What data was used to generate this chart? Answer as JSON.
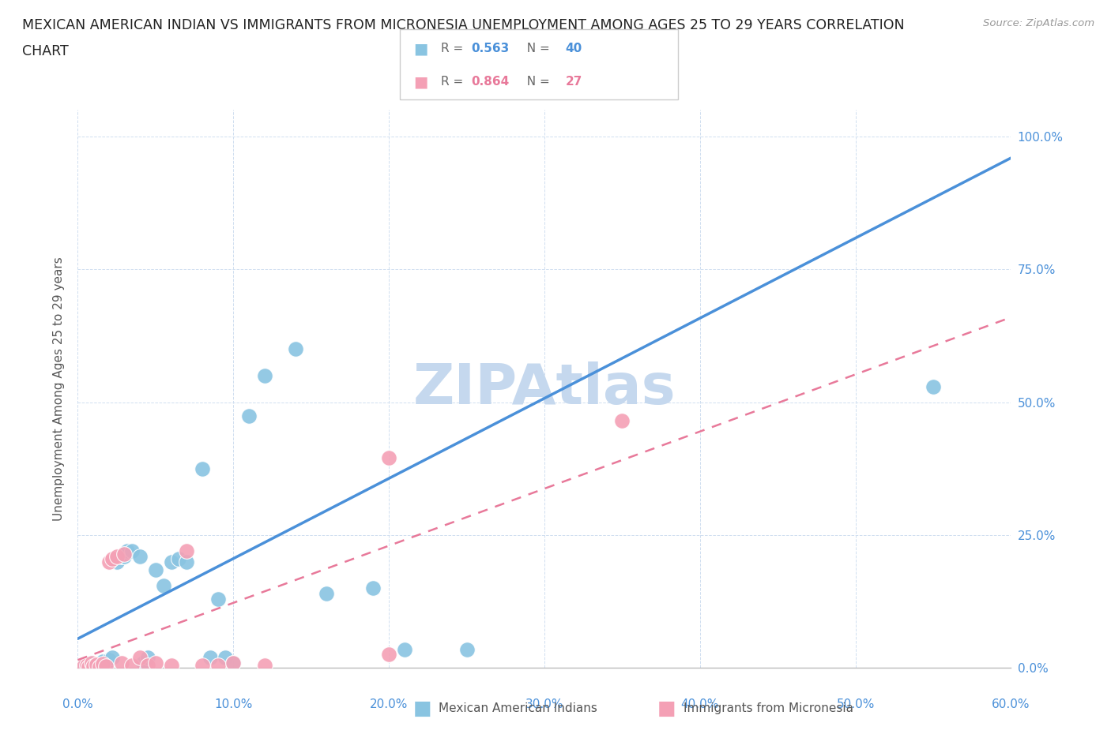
{
  "title_line1": "MEXICAN AMERICAN INDIAN VS IMMIGRANTS FROM MICRONESIA UNEMPLOYMENT AMONG AGES 25 TO 29 YEARS CORRELATION",
  "title_line2": "CHART",
  "source_text": "Source: ZipAtlas.com",
  "ylabel": "Unemployment Among Ages 25 to 29 years",
  "xlim": [
    0.0,
    0.6
  ],
  "ylim": [
    0.0,
    1.05
  ],
  "xticks": [
    0.0,
    0.1,
    0.2,
    0.3,
    0.4,
    0.5,
    0.6
  ],
  "xtick_labels": [
    "0.0%",
    "10.0%",
    "20.0%",
    "30.0%",
    "40.0%",
    "50.0%",
    "60.0%"
  ],
  "yticks_right": [
    0.0,
    0.25,
    0.5,
    0.75,
    1.0
  ],
  "ytick_labels_right": [
    "0.0%",
    "25.0%",
    "50.0%",
    "75.0%",
    "100.0%"
  ],
  "blue_R": 0.563,
  "blue_N": 40,
  "pink_R": 0.864,
  "pink_N": 27,
  "blue_color": "#89c4e1",
  "pink_color": "#f4a0b5",
  "blue_line_color": "#4a90d9",
  "pink_line_color": "#e8799a",
  "grid_color": "#d0dff0",
  "watermark_text": "ZIPAtlas",
  "watermark_color": "#c5d8ee",
  "legend_label_blue": "Mexican American Indians",
  "legend_label_pink": "Immigrants from Micronesia",
  "blue_line_x0": 0.0,
  "blue_line_y0": 0.055,
  "blue_line_x1": 0.6,
  "blue_line_y1": 0.96,
  "pink_line_x0": 0.0,
  "pink_line_y0": 0.015,
  "pink_line_x1": 0.6,
  "pink_line_y1": 0.66,
  "blue_scatter_x": [
    0.005,
    0.007,
    0.008,
    0.009,
    0.01,
    0.011,
    0.012,
    0.013,
    0.015,
    0.016,
    0.017,
    0.018,
    0.02,
    0.022,
    0.025,
    0.028,
    0.03,
    0.032,
    0.035,
    0.04,
    0.042,
    0.045,
    0.05,
    0.055,
    0.06,
    0.065,
    0.07,
    0.08,
    0.085,
    0.09,
    0.095,
    0.1,
    0.11,
    0.12,
    0.14,
    0.16,
    0.19,
    0.21,
    0.25,
    0.55
  ],
  "blue_scatter_y": [
    0.005,
    0.008,
    0.003,
    0.01,
    0.004,
    0.006,
    0.002,
    0.007,
    0.005,
    0.012,
    0.003,
    0.008,
    0.015,
    0.02,
    0.2,
    0.21,
    0.21,
    0.22,
    0.22,
    0.21,
    0.01,
    0.02,
    0.185,
    0.155,
    0.2,
    0.205,
    0.2,
    0.375,
    0.02,
    0.13,
    0.02,
    0.01,
    0.475,
    0.55,
    0.6,
    0.14,
    0.15,
    0.035,
    0.035,
    0.53
  ],
  "pink_scatter_x": [
    0.004,
    0.006,
    0.007,
    0.009,
    0.01,
    0.012,
    0.014,
    0.016,
    0.018,
    0.02,
    0.022,
    0.025,
    0.028,
    0.03,
    0.035,
    0.04,
    0.045,
    0.05,
    0.06,
    0.07,
    0.08,
    0.09,
    0.1,
    0.12,
    0.2,
    0.2,
    0.35
  ],
  "pink_scatter_y": [
    0.003,
    0.005,
    0.002,
    0.01,
    0.003,
    0.006,
    0.002,
    0.008,
    0.004,
    0.2,
    0.205,
    0.21,
    0.01,
    0.215,
    0.005,
    0.02,
    0.005,
    0.01,
    0.005,
    0.22,
    0.005,
    0.005,
    0.01,
    0.005,
    0.395,
    0.025,
    0.465
  ]
}
